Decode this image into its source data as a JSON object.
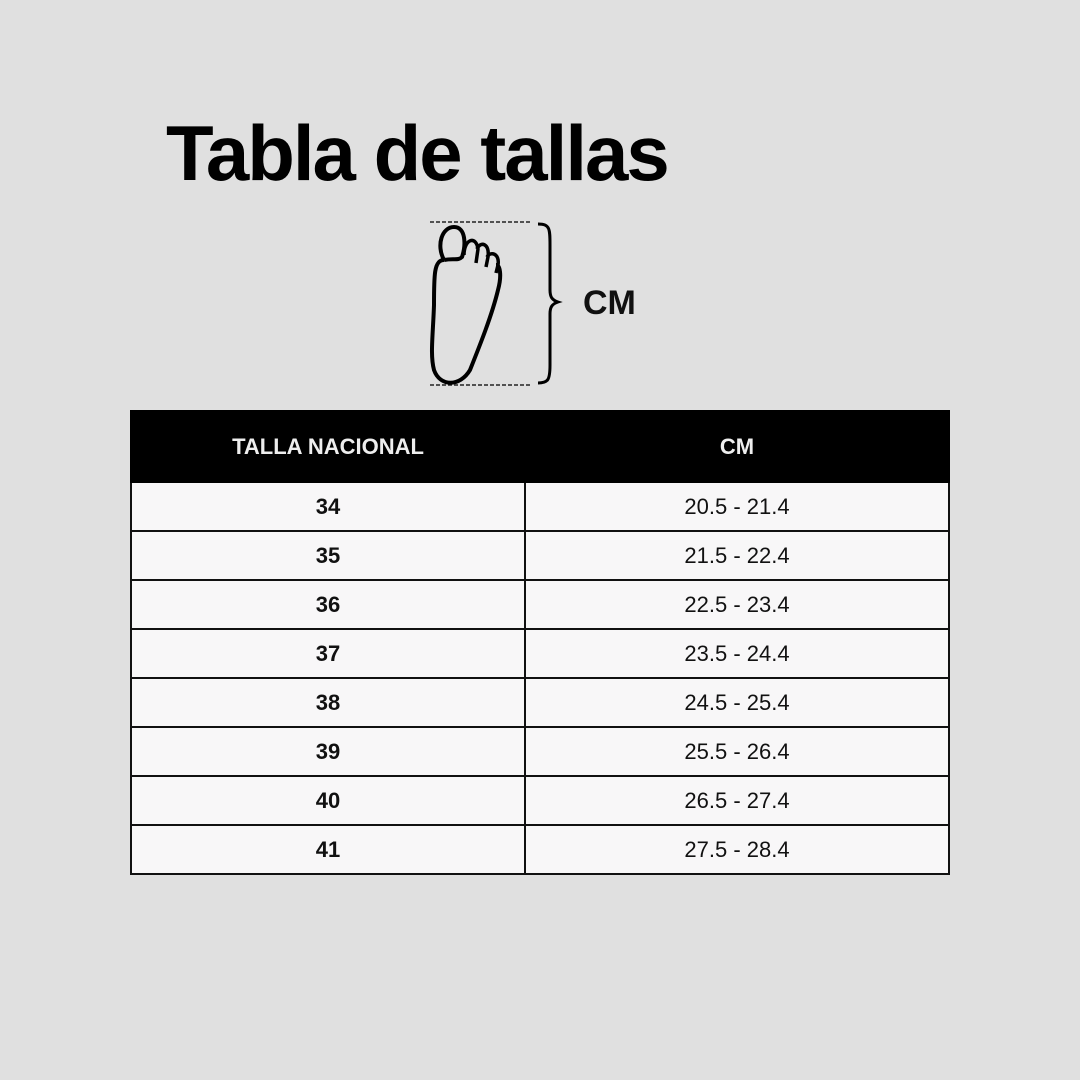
{
  "title": "Tabla de tallas",
  "diagram": {
    "icon": "foot-outline-icon",
    "measure_label": "CM"
  },
  "table": {
    "headers": [
      "TALLA NACIONAL",
      "CM"
    ],
    "rows": [
      {
        "size": "34",
        "cm": "20.5 - 21.4"
      },
      {
        "size": "35",
        "cm": "21.5 - 22.4"
      },
      {
        "size": "36",
        "cm": "22.5 - 23.4"
      },
      {
        "size": "37",
        "cm": "23.5 - 24.4"
      },
      {
        "size": "38",
        "cm": "24.5 - 25.4"
      },
      {
        "size": "39",
        "cm": "25.5 - 26.4"
      },
      {
        "size": "40",
        "cm": "26.5 - 27.4"
      },
      {
        "size": "41",
        "cm": "27.5 - 28.4"
      }
    ]
  },
  "colors": {
    "background": "#e0e0e0",
    "header": "#000000",
    "cell": "#f8f7f8"
  }
}
